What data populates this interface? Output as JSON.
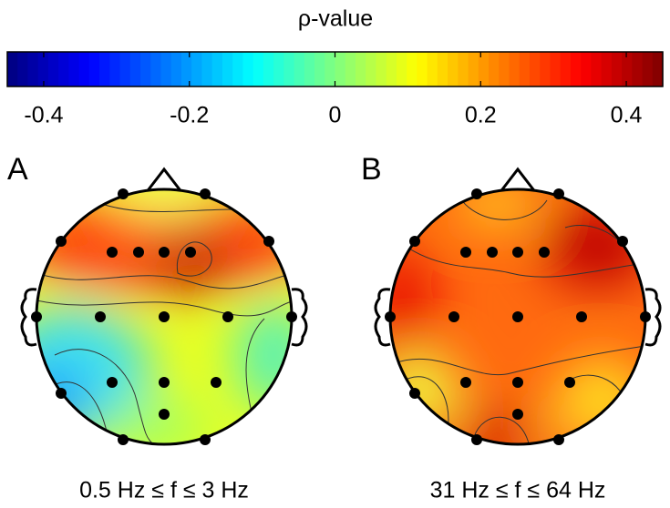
{
  "chart_data": {
    "type": "colorbar",
    "title": "ρ-value",
    "colormap": "jet",
    "xlim": [
      -0.45,
      0.45
    ],
    "xticks": [
      -0.4,
      -0.2,
      0,
      0.2,
      0.4
    ]
  },
  "panels": [
    {
      "label": "A",
      "caption": "0.5 Hz ≤ f ≤ 3 Hz"
    },
    {
      "label": "B",
      "caption": "31 Hz ≤ f ≤ 64 Hz"
    }
  ]
}
